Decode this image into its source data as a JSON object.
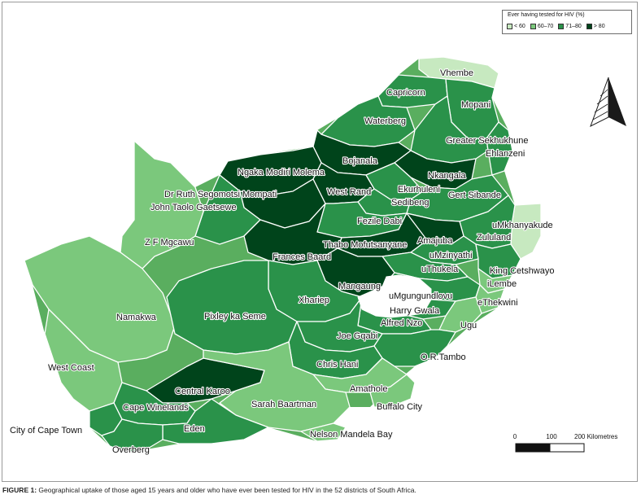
{
  "legend": {
    "title": "Ever having tested for HIV (%)",
    "classes": [
      {
        "label": "< 60",
        "color": "#c7e9c0"
      },
      {
        "label": "60–70",
        "color": "#7bc87c"
      },
      {
        "label": "71–80",
        "color": "#2a924a"
      },
      {
        "label": "> 80",
        "color": "#00441b"
      }
    ]
  },
  "scale": {
    "labels": [
      "0",
      "100",
      "200 Kilometres"
    ]
  },
  "caption": {
    "prefix": "FIGURE 1:",
    "text": " Geographical uptake of those aged 15 years and older who have ever been tested for HIV in the 52 districts of South Africa."
  },
  "districts": [
    {
      "name": "Vhembe",
      "class": 0
    },
    {
      "name": "Capricorn",
      "class": 2
    },
    {
      "name": "Mopani",
      "class": 2
    },
    {
      "name": "Waterberg",
      "class": 2
    },
    {
      "name": "Greater Sekhukhune",
      "class": 2
    },
    {
      "name": "Ehlanzeni",
      "class": 2
    },
    {
      "name": "Bojanala",
      "class": 3
    },
    {
      "name": "Ngaka Modiri Molema",
      "class": 3
    },
    {
      "name": "Nkangala",
      "class": 3
    },
    {
      "name": "Dr Ruth Segomotsi Mompati",
      "class": 3
    },
    {
      "name": "West Rand",
      "class": 3
    },
    {
      "name": "Ekurhuleni",
      "class": 2
    },
    {
      "name": "Sedibeng",
      "class": 2
    },
    {
      "name": "Gert Sibande",
      "class": 2
    },
    {
      "name": "John Taolo Gaetsewe",
      "class": 2
    },
    {
      "name": "Fezile Dabi",
      "class": 2
    },
    {
      "name": "uMkhanyakude",
      "class": 0
    },
    {
      "name": "Zululand",
      "class": 2
    },
    {
      "name": "Z F Mgcawu",
      "class": 1
    },
    {
      "name": "Thabo Mofutsanyane",
      "class": 3
    },
    {
      "name": "Amajuba",
      "class": 3
    },
    {
      "name": "Frances Baard",
      "class": 3
    },
    {
      "name": "uMzinyathi",
      "class": 2
    },
    {
      "name": "uThukela",
      "class": 2
    },
    {
      "name": "King Cetshwayo",
      "class": 2
    },
    {
      "name": "iLembe",
      "class": 1
    },
    {
      "name": "Mangaung",
      "class": 3
    },
    {
      "name": "uMgungundlovu",
      "class": 2
    },
    {
      "name": "eThekwini",
      "class": 1
    },
    {
      "name": "Namakwa",
      "class": 1
    },
    {
      "name": "Xhariep",
      "class": 2
    },
    {
      "name": "Harry Gwala",
      "class": 2
    },
    {
      "name": "Pixley ka Seme",
      "class": 2
    },
    {
      "name": "Alfred Nzo",
      "class": 2
    },
    {
      "name": "Ugu",
      "class": 1
    },
    {
      "name": "Joe Gqabi",
      "class": 2
    },
    {
      "name": "West Coast",
      "class": 1
    },
    {
      "name": "Chris Hani",
      "class": 2
    },
    {
      "name": "O.R.Tambo",
      "class": 2
    },
    {
      "name": "Central Karoo",
      "class": 3
    },
    {
      "name": "Amathole",
      "class": 1
    },
    {
      "name": "Sarah Baartman",
      "class": 1
    },
    {
      "name": "Cape Winelands",
      "class": 2
    },
    {
      "name": "Buffalo City",
      "class": 1
    },
    {
      "name": "Eden",
      "class": 2
    },
    {
      "name": "City of Cape Town",
      "class": 2
    },
    {
      "name": "Nelson Mandela Bay",
      "class": 1
    },
    {
      "name": "Overberg",
      "class": 2
    }
  ]
}
